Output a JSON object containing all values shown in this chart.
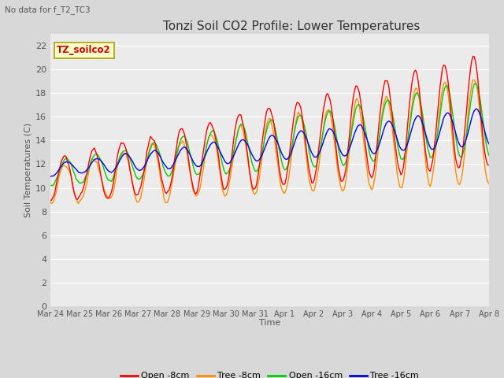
{
  "title": "Tonzi Soil CO2 Profile: Lower Temperatures",
  "subtitle": "No data for f_T2_TC3",
  "ylabel": "Soil Temperatures (C)",
  "xlabel": "Time",
  "annotation": "TZ_soilco2",
  "bg_color": "#d8d8d8",
  "plot_bg": "#ebebeb",
  "ylim": [
    0,
    23
  ],
  "yticks": [
    0,
    2,
    4,
    6,
    8,
    10,
    12,
    14,
    16,
    18,
    20,
    22
  ],
  "line_colors": [
    "#ff0000",
    "#ff8c00",
    "#00cc00",
    "#0000ee"
  ],
  "line_labels": [
    "Open -8cm",
    "Tree -8cm",
    "Open -16cm",
    "Tree -16cm"
  ],
  "x_tick_labels": [
    "Mar 24",
    "Mar 25",
    "Mar 26",
    "Mar 27",
    "Mar 28",
    "Mar 29",
    "Mar 30",
    "Mar 31",
    "Apr 1",
    "Apr 2",
    "Apr 3",
    "Apr 4",
    "Apr 5",
    "Apr 6",
    "Apr 7",
    "Apr 8"
  ],
  "n_points": 360,
  "days": 15
}
